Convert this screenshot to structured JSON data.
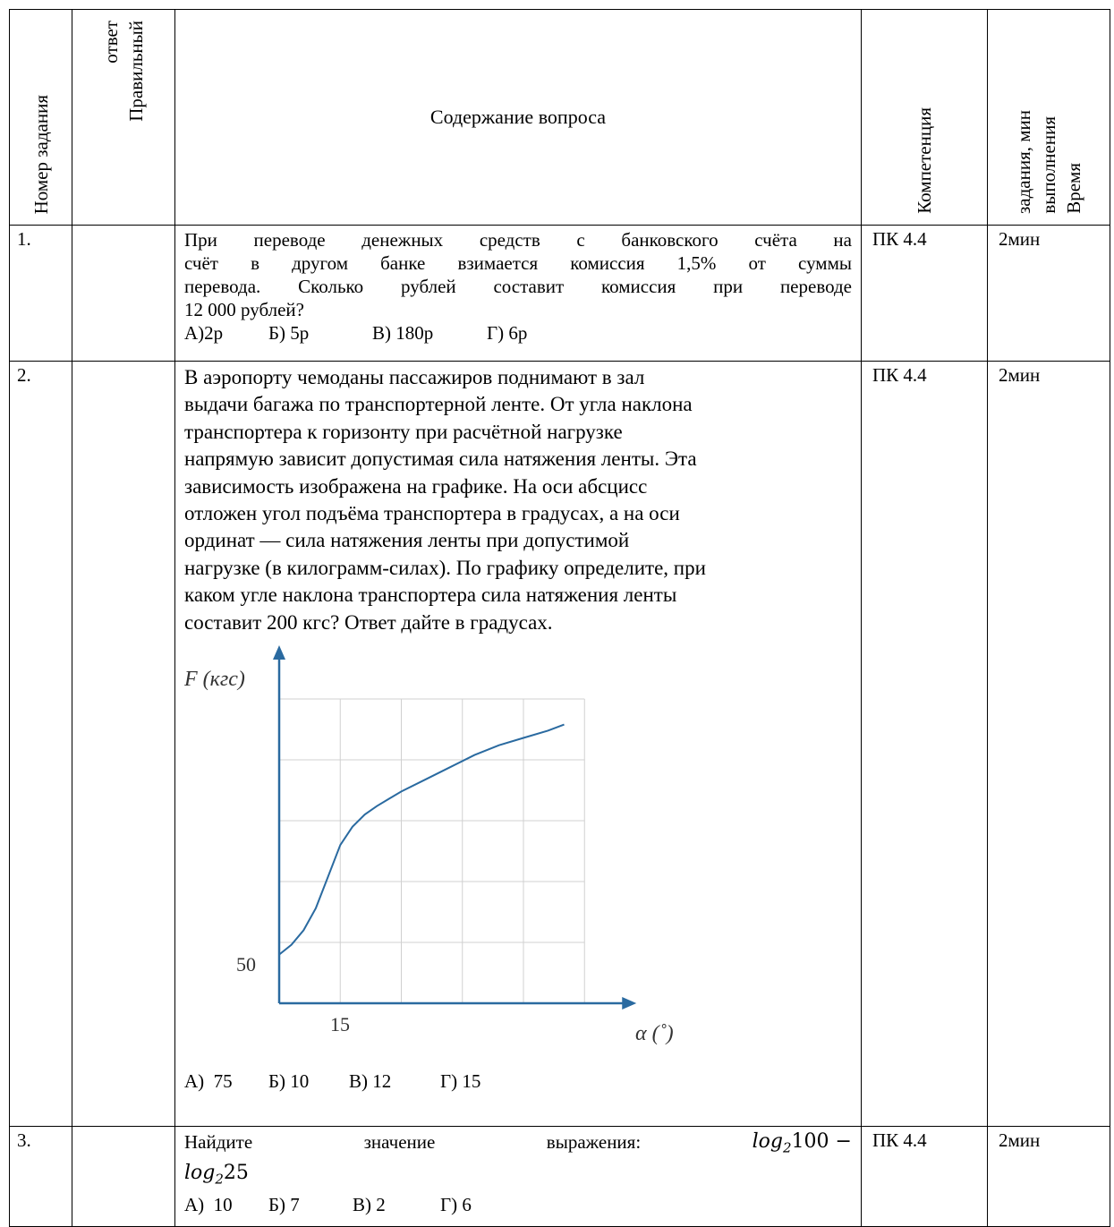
{
  "headers": {
    "task_number": "Номер задания",
    "correct_answer_l1": "Правильный",
    "correct_answer_l2": "ответ",
    "question": "Содержание вопроса",
    "competence": "Компетенция",
    "time_l1": "Время",
    "time_l2": "выполнения",
    "time_l3": "задания, мин"
  },
  "rows": [
    {
      "number": "1.",
      "answer": "",
      "text_lines": [
        "При переводе денежных средств с банковского счёта на",
        "счёт в другом банке взимается комиссия 1,5% от суммы",
        "перевода. Сколько рублей составит комиссия при переводе",
        "12 000 рублей?"
      ],
      "options": [
        "А)2р",
        "Б) 5р",
        "В) 180р",
        "Г) 6р"
      ],
      "competence": "ПК 4.4",
      "time": "2мин"
    },
    {
      "number": "2.",
      "answer": "",
      "text_lines": [
        "В аэропорту чемоданы пассажиров поднимают в зал",
        "выдачи багажа по транспортерной ленте. От угла наклона",
        "транспортера к горизонту при расчётной нагрузке",
        "напрямую зависит допустимая сила натяжения ленты. Эта",
        "зависимость изображена на графике. На оси абсцисс",
        "отложен угол подъёма транспортера в градусах, а на оси",
        "ординат — сила натяжения ленты при допустимой",
        "нагрузке (в килограмм-силах). По графику определите, при",
        "каком угле наклона транспортера сила натяжения ленты",
        "составит 200 кгс? Ответ дайте в градусах."
      ],
      "options": [
        "А)  75",
        "Б) 10",
        "В) 12",
        "Г) 15"
      ],
      "competence": "ПК 4.4",
      "time": "2мин"
    },
    {
      "number": "3.",
      "answer": "",
      "eq_words": [
        "Найдите",
        "значение",
        "выражения:"
      ],
      "eq_part1": "log",
      "eq_sub1": "2",
      "eq_val1": "100 −",
      "eq_part2": "log",
      "eq_sub2": "2",
      "eq_val2": "25",
      "options": [
        "А)  10",
        "Б) 7",
        "В) 2",
        "Г) 6"
      ],
      "competence": "ПК 4.4",
      "time": "2мин"
    }
  ],
  "chart_data": {
    "type": "line",
    "ylabel": "F (кгс)",
    "xlabel": "α (˚)",
    "x_tick_label": "15",
    "y_tick_label": "50",
    "x_step": 15,
    "y_step": 50,
    "xlim": [
      0,
      75
    ],
    "ylim": [
      0,
      250
    ],
    "grid": true,
    "series": [
      {
        "x": [
          0,
          3,
          6,
          9,
          12,
          15,
          18,
          21,
          24,
          27,
          30,
          36,
          42,
          48,
          54,
          60,
          66,
          70
        ],
        "y": [
          40,
          48,
          60,
          78,
          104,
          130,
          145,
          155,
          162,
          168,
          174,
          184,
          194,
          204,
          212,
          218,
          224,
          229
        ]
      }
    ]
  }
}
